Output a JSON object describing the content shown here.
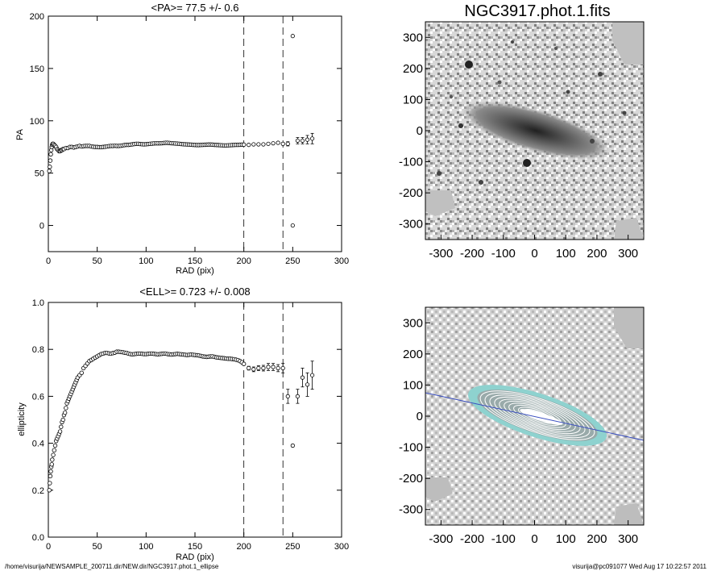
{
  "chart_data": [
    {
      "type": "scatter",
      "title": "<PA>=  77.5 +/-   0.6",
      "xlabel": "RAD (pix)",
      "ylabel": "PA",
      "xlim": [
        0,
        300
      ],
      "ylim": [
        -25,
        200
      ],
      "xticks": [
        "0",
        "50",
        "100",
        "150",
        "200",
        "250",
        "300"
      ],
      "yticks": [
        "0",
        "50",
        "100",
        "150",
        "200"
      ],
      "vlines": [
        200,
        240
      ],
      "grid": false,
      "inner_points": {
        "x": [
          1,
          1.5,
          2,
          2.5,
          3,
          3.5,
          4,
          4.5,
          5,
          6,
          7,
          8,
          9,
          10,
          11,
          12,
          13,
          14,
          15,
          16,
          18,
          20,
          22,
          24,
          26,
          28,
          30,
          32,
          34,
          36,
          38,
          40,
          42,
          44,
          46,
          48,
          50,
          52,
          54,
          56,
          58,
          60,
          62,
          64,
          66,
          68,
          70,
          72,
          74,
          76,
          78,
          80,
          82,
          84,
          86,
          88,
          90,
          92,
          94,
          96,
          98,
          100,
          102,
          104,
          106,
          108,
          110,
          112,
          114,
          116,
          118,
          120,
          122,
          124,
          126,
          128,
          130,
          132,
          134,
          136,
          138,
          140,
          142,
          144,
          146,
          148,
          150,
          152,
          154,
          156,
          158,
          160,
          162,
          164,
          166,
          168,
          170,
          172,
          174,
          176,
          178,
          180,
          182,
          184,
          186,
          188,
          190,
          192,
          194,
          196,
          198,
          200
        ],
        "y": [
          52,
          56,
          62,
          68,
          72,
          75,
          77,
          78,
          78,
          77,
          76,
          75,
          73,
          72,
          71,
          71,
          72,
          72,
          73,
          73,
          74,
          74,
          75,
          75,
          74.5,
          75,
          75.5,
          76,
          75.5,
          75.8,
          76,
          76,
          76,
          75.5,
          75.2,
          75,
          75,
          74.8,
          74.8,
          75,
          75.2,
          75.5,
          75.8,
          76,
          76,
          76.2,
          76,
          76,
          76.2,
          76.5,
          76.8,
          77,
          77,
          77.2,
          77.5,
          77.8,
          78,
          78,
          77.8,
          77.6,
          77.5,
          77.6,
          77.8,
          78,
          78.2,
          78.4,
          78.5,
          78.5,
          78.5,
          78.6,
          78.8,
          79,
          79,
          78.8,
          78.6,
          78.5,
          78.3,
          78.2,
          78,
          77.8,
          77.6,
          77.5,
          77.4,
          77.3,
          77.2,
          77,
          76.9,
          76.8,
          76.8,
          76.9,
          77,
          77.1,
          77.2,
          77.3,
          77.3,
          77.2,
          77,
          76.9,
          76.8,
          76.7,
          76.6,
          76.5,
          76.5,
          76.6,
          76.7,
          76.8,
          76.9,
          77,
          77,
          77.1,
          77.2,
          77.2
        ]
      },
      "outer_points": {
        "x": [
          205,
          210,
          215,
          220,
          225,
          230,
          235,
          240,
          245,
          250,
          255,
          260,
          265,
          270
        ],
        "y": [
          77,
          77.5,
          77.5,
          77.5,
          78,
          78.5,
          79,
          78,
          78,
          0,
          81,
          81,
          82,
          83
        ],
        "err": [
          0.6,
          0.6,
          0.7,
          0.7,
          0.8,
          0.8,
          1.0,
          1.2,
          2.0,
          0.5,
          3,
          3,
          4,
          5
        ]
      },
      "outlier": {
        "x": 250,
        "y": 181
      }
    },
    {
      "type": "scatter",
      "title": "<ELL>= 0.723 +/-  0.008",
      "xlabel": "RAD (pix)",
      "ylabel": "ellipticity",
      "xlim": [
        0,
        300
      ],
      "ylim": [
        0,
        1
      ],
      "xticks": [
        "0",
        "50",
        "100",
        "150",
        "200",
        "250",
        "300"
      ],
      "yticks": [
        "0.0",
        "0.2",
        "0.4",
        "0.6",
        "0.8",
        "1.0"
      ],
      "vlines": [
        200,
        240
      ],
      "grid": false,
      "inner_points": {
        "x": [
          1,
          1.5,
          2,
          2.5,
          3,
          3.5,
          4,
          5,
          6,
          7,
          8,
          9,
          10,
          11,
          12,
          13,
          14,
          15,
          16,
          17,
          18,
          19,
          20,
          21,
          22,
          23,
          24,
          25,
          26,
          27,
          28,
          29,
          30,
          32,
          34,
          36,
          38,
          40,
          42,
          44,
          46,
          48,
          50,
          52,
          54,
          56,
          58,
          60,
          62,
          64,
          66,
          68,
          70,
          72,
          74,
          76,
          78,
          80,
          82,
          84,
          86,
          88,
          90,
          92,
          94,
          96,
          98,
          100,
          102,
          104,
          106,
          108,
          110,
          112,
          114,
          116,
          118,
          120,
          122,
          124,
          126,
          128,
          130,
          132,
          134,
          136,
          138,
          140,
          142,
          144,
          146,
          148,
          150,
          152,
          154,
          156,
          158,
          160,
          162,
          164,
          166,
          168,
          170,
          172,
          174,
          176,
          178,
          180,
          182,
          184,
          186,
          188,
          190,
          192,
          194,
          196,
          198,
          200
        ],
        "y": [
          0.2,
          0.23,
          0.26,
          0.28,
          0.3,
          0.31,
          0.33,
          0.35,
          0.37,
          0.39,
          0.41,
          0.42,
          0.43,
          0.44,
          0.45,
          0.47,
          0.49,
          0.5,
          0.52,
          0.53,
          0.55,
          0.57,
          0.58,
          0.59,
          0.6,
          0.61,
          0.62,
          0.63,
          0.64,
          0.65,
          0.66,
          0.67,
          0.68,
          0.69,
          0.7,
          0.72,
          0.73,
          0.74,
          0.75,
          0.755,
          0.76,
          0.765,
          0.77,
          0.775,
          0.78,
          0.782,
          0.785,
          0.785,
          0.783,
          0.782,
          0.784,
          0.786,
          0.79,
          0.79,
          0.789,
          0.788,
          0.786,
          0.785,
          0.782,
          0.78,
          0.779,
          0.78,
          0.781,
          0.782,
          0.782,
          0.781,
          0.78,
          0.78,
          0.781,
          0.782,
          0.782,
          0.781,
          0.78,
          0.779,
          0.78,
          0.781,
          0.782,
          0.782,
          0.78,
          0.779,
          0.778,
          0.779,
          0.78,
          0.781,
          0.78,
          0.779,
          0.778,
          0.777,
          0.776,
          0.777,
          0.778,
          0.777,
          0.776,
          0.775,
          0.774,
          0.772,
          0.77,
          0.769,
          0.768,
          0.769,
          0.77,
          0.77,
          0.768,
          0.766,
          0.765,
          0.764,
          0.763,
          0.762,
          0.761,
          0.76,
          0.76,
          0.759,
          0.758,
          0.756,
          0.754,
          0.75,
          0.745,
          0.738
        ]
      },
      "outer_points": {
        "x": [
          205,
          210,
          215,
          220,
          225,
          230,
          235,
          240,
          245,
          250,
          255,
          260,
          265,
          270
        ],
        "y": [
          0.72,
          0.715,
          0.72,
          0.72,
          0.725,
          0.725,
          0.72,
          0.72,
          0.6,
          0.39,
          0.6,
          0.68,
          0.65,
          0.69
        ],
        "err": [
          0.008,
          0.01,
          0.01,
          0.012,
          0.015,
          0.015,
          0.015,
          0.02,
          0.03,
          0.005,
          0.03,
          0.04,
          0.05,
          0.06
        ]
      }
    },
    {
      "type": "heatmap",
      "title": "NGC3917.phot.1.fits",
      "xlim": [
        -350,
        350
      ],
      "ylim": [
        -350,
        350
      ],
      "xticks": [
        "-300",
        "-200",
        "-100",
        "0",
        "100",
        "200",
        "300"
      ],
      "yticks": [
        "300",
        "200",
        "100",
        "0",
        "-100",
        "-200",
        "-300"
      ]
    },
    {
      "type": "heatmap",
      "title": "",
      "xlim": [
        -350,
        350
      ],
      "ylim": [
        -350,
        350
      ],
      "xticks": [
        "-300",
        "-200",
        "-100",
        "0",
        "100",
        "200",
        "300"
      ],
      "yticks": [
        "300",
        "200",
        "100",
        "0",
        "-100",
        "-200",
        "-300"
      ]
    }
  ],
  "footer": {
    "left": "/home/visurija/NEWSAMPLE_200711.dir/NEW.dir/NGC3917.phot.1_ellipse",
    "right": "visurija@pc091077  Wed Aug 17 10:22:57 2011"
  }
}
